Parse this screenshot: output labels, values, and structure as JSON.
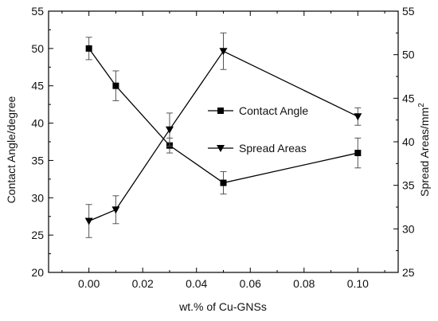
{
  "chart_data": {
    "type": "line",
    "xlabel": "wt.% of Cu-GNSs",
    "ylabel_left": "Contact Angle/degree",
    "ylabel_right": "Spread Areas/mm",
    "ylabel_right_sup": "2",
    "xlim": [
      -0.015,
      0.115
    ],
    "ylim_left": [
      20,
      55
    ],
    "ylim_right": [
      25,
      55
    ],
    "x_ticks": [
      0.0,
      0.02,
      0.04,
      0.06,
      0.08,
      0.1
    ],
    "x_tick_labels": [
      "0.00",
      "0.02",
      "0.04",
      "0.06",
      "0.08",
      "0.10"
    ],
    "y_left_ticks": [
      20,
      25,
      30,
      35,
      40,
      45,
      50,
      55
    ],
    "y_left_tick_labels": [
      "20",
      "25",
      "30",
      "35",
      "40",
      "45",
      "50",
      "55"
    ],
    "y_right_ticks": [
      25,
      30,
      35,
      40,
      45,
      50,
      55
    ],
    "y_right_tick_labels": [
      "25",
      "30",
      "35",
      "40",
      "45",
      "50",
      "55"
    ],
    "grid": false,
    "legend_position": "center-right",
    "series": [
      {
        "name": "Contact Angle",
        "axis": "left",
        "marker": "square",
        "x": [
          0.0,
          0.01,
          0.03,
          0.05,
          0.1
        ],
        "y": [
          50,
          45,
          37,
          32,
          36
        ],
        "err": [
          1.5,
          2.0,
          1.0,
          1.5,
          2.0
        ]
      },
      {
        "name": "Spread Areas",
        "axis": "right",
        "marker": "triangle-down",
        "x": [
          0.0,
          0.01,
          0.03,
          0.05,
          0.1
        ],
        "y": [
          30.9,
          32.2,
          41.4,
          50.4,
          42.9
        ],
        "err": [
          1.9,
          1.6,
          1.9,
          2.1,
          1.0
        ]
      }
    ]
  }
}
